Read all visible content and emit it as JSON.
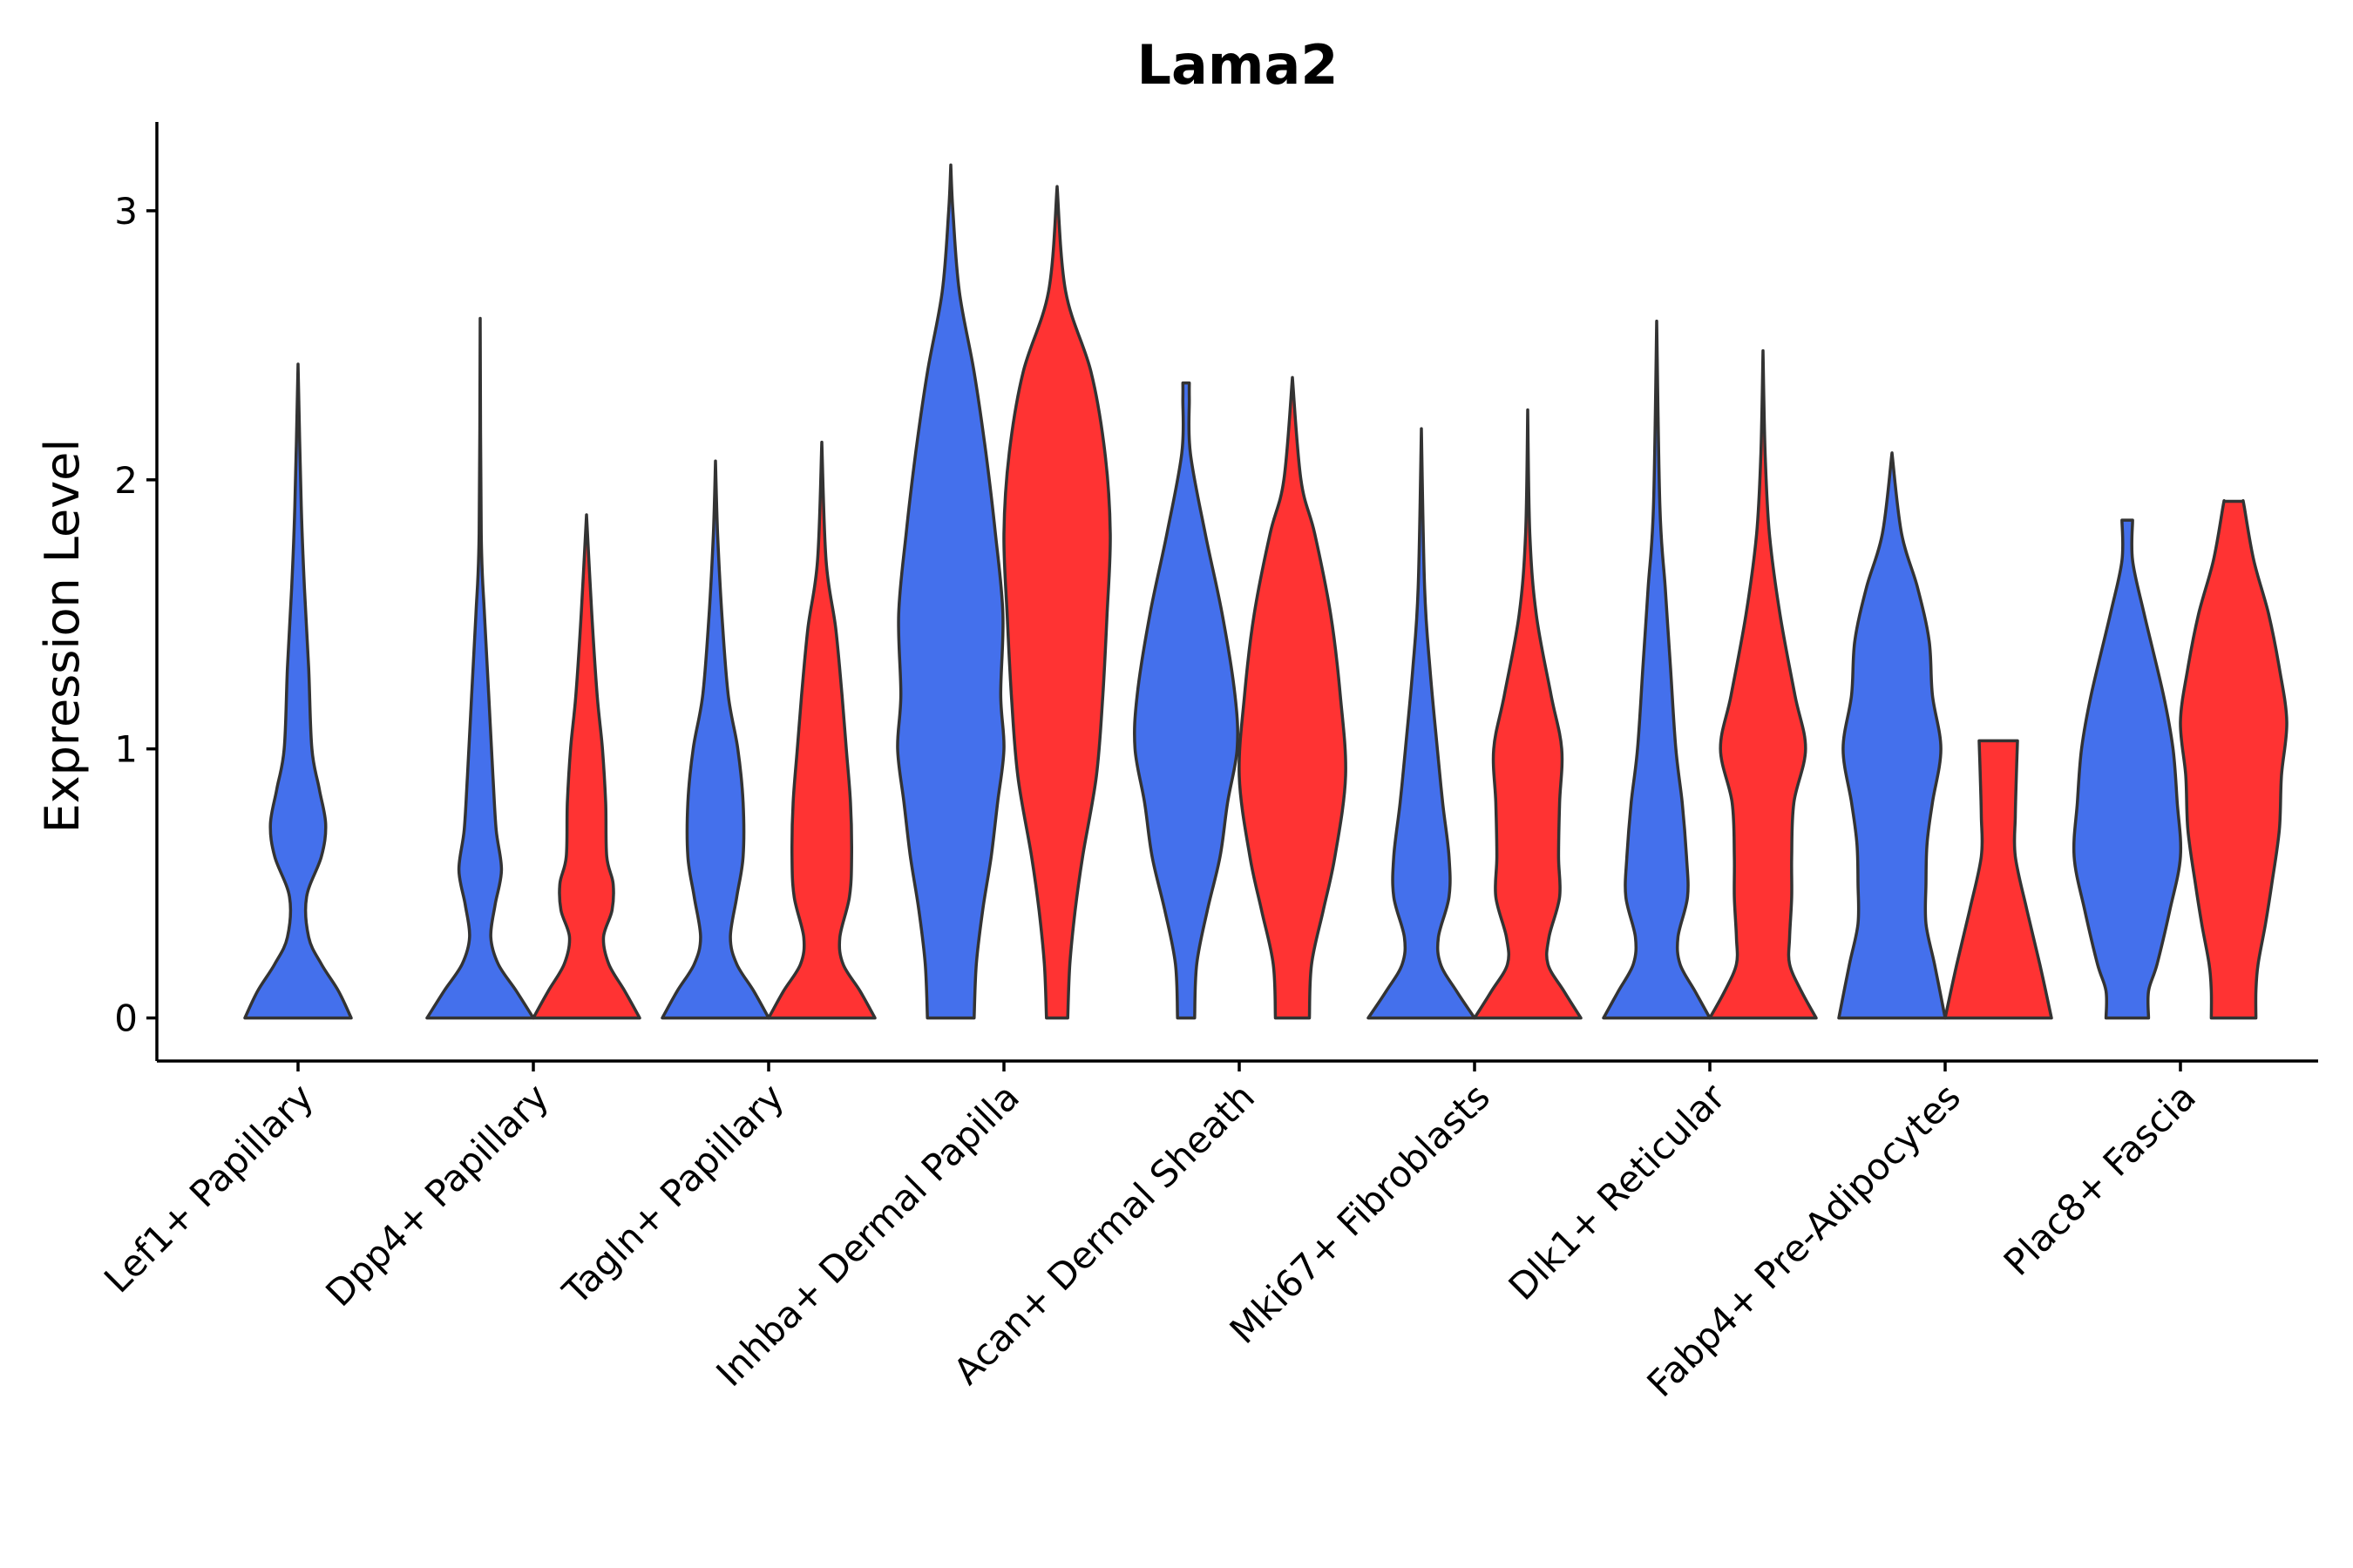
{
  "chart_data": {
    "type": "violin",
    "title": "Lama2",
    "xlabel": "",
    "ylabel": "Expression Level",
    "ylim": [
      -0.16,
      3.33
    ],
    "yticks": [
      0,
      1,
      2,
      3
    ],
    "categories": [
      "Lef1+ Papillary",
      "Dpp4+ Papillary",
      "Tagln+ Papillary",
      "Inhba+ Dermal Papilla",
      "Acan+ Dermal Sheath",
      "Mki67+ Fibroblasts",
      "Dlk1+ Reticular",
      "Fabp4+ Pre-Adipocytes",
      "Plac8+ Fascia"
    ],
    "series_colors": [
      "#4470EC",
      "#FF3333"
    ],
    "violins": [
      {
        "category": "Lef1+ Papillary",
        "group": 0,
        "max": 2.43,
        "profile": [
          [
            0,
            0.5
          ],
          [
            0.1,
            0.38
          ],
          [
            0.2,
            0.22
          ],
          [
            0.3,
            0.1
          ],
          [
            0.45,
            0.08
          ],
          [
            0.6,
            0.22
          ],
          [
            0.72,
            0.26
          ],
          [
            0.85,
            0.2
          ],
          [
            1.0,
            0.13
          ],
          [
            1.3,
            0.1
          ],
          [
            1.6,
            0.06
          ],
          [
            1.9,
            0.03
          ],
          [
            2.43,
            0.0
          ]
        ]
      },
      {
        "category": "Dpp4+ Papillary",
        "group": 0,
        "max": 2.6,
        "profile": [
          [
            0,
            0.5
          ],
          [
            0.1,
            0.34
          ],
          [
            0.2,
            0.17
          ],
          [
            0.3,
            0.1
          ],
          [
            0.42,
            0.14
          ],
          [
            0.55,
            0.2
          ],
          [
            0.7,
            0.15
          ],
          [
            0.9,
            0.12
          ],
          [
            1.2,
            0.08
          ],
          [
            1.5,
            0.04
          ],
          [
            1.8,
            0.01
          ],
          [
            2.6,
            0.0
          ]
        ]
      },
      {
        "category": "Dpp4+ Papillary",
        "group": 1,
        "max": 1.87,
        "profile": [
          [
            0,
            0.5
          ],
          [
            0.1,
            0.36
          ],
          [
            0.2,
            0.21
          ],
          [
            0.3,
            0.16
          ],
          [
            0.4,
            0.24
          ],
          [
            0.5,
            0.25
          ],
          [
            0.6,
            0.19
          ],
          [
            0.8,
            0.18
          ],
          [
            1.0,
            0.15
          ],
          [
            1.2,
            0.1
          ],
          [
            1.5,
            0.05
          ],
          [
            1.87,
            0.0
          ]
        ]
      },
      {
        "category": "Tagln+ Papillary",
        "group": 0,
        "max": 2.07,
        "profile": [
          [
            0,
            0.5
          ],
          [
            0.1,
            0.36
          ],
          [
            0.2,
            0.2
          ],
          [
            0.3,
            0.14
          ],
          [
            0.45,
            0.2
          ],
          [
            0.6,
            0.26
          ],
          [
            0.8,
            0.26
          ],
          [
            1.0,
            0.21
          ],
          [
            1.2,
            0.12
          ],
          [
            1.5,
            0.06
          ],
          [
            1.8,
            0.02
          ],
          [
            2.07,
            0.0
          ]
        ]
      },
      {
        "category": "Tagln+ Papillary",
        "group": 1,
        "max": 2.14,
        "profile": [
          [
            0,
            0.5
          ],
          [
            0.1,
            0.36
          ],
          [
            0.2,
            0.2
          ],
          [
            0.3,
            0.17
          ],
          [
            0.45,
            0.26
          ],
          [
            0.6,
            0.28
          ],
          [
            0.8,
            0.27
          ],
          [
            1.0,
            0.23
          ],
          [
            1.2,
            0.19
          ],
          [
            1.45,
            0.13
          ],
          [
            1.7,
            0.04
          ],
          [
            2.14,
            0.0
          ]
        ]
      },
      {
        "category": "Inhba+ Dermal Papilla",
        "group": 0,
        "max": 3.17,
        "profile": [
          [
            0,
            0.22
          ],
          [
            0.2,
            0.24
          ],
          [
            0.4,
            0.3
          ],
          [
            0.6,
            0.38
          ],
          [
            0.8,
            0.44
          ],
          [
            1.0,
            0.5
          ],
          [
            1.2,
            0.47
          ],
          [
            1.5,
            0.49
          ],
          [
            1.8,
            0.42
          ],
          [
            2.1,
            0.33
          ],
          [
            2.4,
            0.22
          ],
          [
            2.7,
            0.08
          ],
          [
            3.0,
            0.02
          ],
          [
            3.17,
            0.0
          ]
        ]
      },
      {
        "category": "Inhba+ Dermal Papilla",
        "group": 1,
        "max": 3.09,
        "profile": [
          [
            0,
            0.1
          ],
          [
            0.2,
            0.12
          ],
          [
            0.4,
            0.17
          ],
          [
            0.6,
            0.24
          ],
          [
            0.9,
            0.37
          ],
          [
            1.2,
            0.43
          ],
          [
            1.5,
            0.47
          ],
          [
            1.8,
            0.5
          ],
          [
            2.1,
            0.45
          ],
          [
            2.4,
            0.32
          ],
          [
            2.7,
            0.08
          ],
          [
            3.09,
            0.0
          ]
        ]
      },
      {
        "category": "Acan+ Dermal Sheath",
        "group": 0,
        "max": 2.36,
        "profile": [
          [
            0,
            0.08
          ],
          [
            0.2,
            0.1
          ],
          [
            0.4,
            0.2
          ],
          [
            0.6,
            0.32
          ],
          [
            0.8,
            0.39
          ],
          [
            1.0,
            0.48
          ],
          [
            1.2,
            0.46
          ],
          [
            1.5,
            0.34
          ],
          [
            1.8,
            0.18
          ],
          [
            2.1,
            0.04
          ],
          [
            2.3,
            0.03
          ],
          [
            2.36,
            0.03
          ]
        ]
      },
      {
        "category": "Acan+ Dermal Sheath",
        "group": 1,
        "max": 2.38,
        "profile": [
          [
            0,
            0.16
          ],
          [
            0.2,
            0.18
          ],
          [
            0.4,
            0.29
          ],
          [
            0.6,
            0.4
          ],
          [
            0.9,
            0.5
          ],
          [
            1.2,
            0.45
          ],
          [
            1.5,
            0.36
          ],
          [
            1.8,
            0.21
          ],
          [
            2.0,
            0.08
          ],
          [
            2.38,
            0.0
          ]
        ]
      },
      {
        "category": "Mki67+ Fibroblasts",
        "group": 0,
        "max": 2.19,
        "profile": [
          [
            0,
            0.5
          ],
          [
            0.1,
            0.33
          ],
          [
            0.2,
            0.18
          ],
          [
            0.3,
            0.16
          ],
          [
            0.45,
            0.26
          ],
          [
            0.6,
            0.26
          ],
          [
            0.8,
            0.2
          ],
          [
            1.0,
            0.15
          ],
          [
            1.3,
            0.08
          ],
          [
            1.6,
            0.03
          ],
          [
            2.19,
            0.0
          ]
        ]
      },
      {
        "category": "Mki67+ Fibroblasts",
        "group": 1,
        "max": 2.26,
        "profile": [
          [
            0,
            0.5
          ],
          [
            0.1,
            0.34
          ],
          [
            0.2,
            0.19
          ],
          [
            0.3,
            0.2
          ],
          [
            0.45,
            0.3
          ],
          [
            0.6,
            0.29
          ],
          [
            0.8,
            0.3
          ],
          [
            1.0,
            0.32
          ],
          [
            1.2,
            0.22
          ],
          [
            1.5,
            0.08
          ],
          [
            1.8,
            0.02
          ],
          [
            2.26,
            0.0
          ]
        ]
      },
      {
        "category": "Dlk1+ Reticular",
        "group": 0,
        "max": 2.59,
        "profile": [
          [
            0,
            0.5
          ],
          [
            0.1,
            0.36
          ],
          [
            0.2,
            0.22
          ],
          [
            0.3,
            0.2
          ],
          [
            0.45,
            0.29
          ],
          [
            0.6,
            0.28
          ],
          [
            0.8,
            0.24
          ],
          [
            1.0,
            0.18
          ],
          [
            1.3,
            0.13
          ],
          [
            1.6,
            0.08
          ],
          [
            1.9,
            0.03
          ],
          [
            2.59,
            0.0
          ]
        ]
      },
      {
        "category": "Dlk1+ Reticular",
        "group": 1,
        "max": 2.48,
        "profile": [
          [
            0,
            0.5
          ],
          [
            0.1,
            0.36
          ],
          [
            0.2,
            0.25
          ],
          [
            0.3,
            0.25
          ],
          [
            0.45,
            0.27
          ],
          [
            0.6,
            0.27
          ],
          [
            0.8,
            0.29
          ],
          [
            1.0,
            0.4
          ],
          [
            1.2,
            0.3
          ],
          [
            1.5,
            0.16
          ],
          [
            1.8,
            0.06
          ],
          [
            2.1,
            0.02
          ],
          [
            2.48,
            0.0
          ]
        ]
      },
      {
        "category": "Fabp4+ Pre-Adipocytes",
        "group": 0,
        "max": 2.1,
        "profile": [
          [
            0,
            0.5
          ],
          [
            0.2,
            0.4
          ],
          [
            0.35,
            0.32
          ],
          [
            0.5,
            0.32
          ],
          [
            0.65,
            0.33
          ],
          [
            0.8,
            0.38
          ],
          [
            1.0,
            0.46
          ],
          [
            1.2,
            0.38
          ],
          [
            1.4,
            0.35
          ],
          [
            1.6,
            0.24
          ],
          [
            1.8,
            0.09
          ],
          [
            2.1,
            0.0
          ]
        ]
      },
      {
        "category": "Fabp4+ Pre-Adipocytes",
        "group": 1,
        "max": 1.03,
        "profile": [
          [
            0,
            0.5
          ],
          [
            0.2,
            0.39
          ],
          [
            0.4,
            0.27
          ],
          [
            0.6,
            0.16
          ],
          [
            0.75,
            0.16
          ],
          [
            0.9,
            0.17
          ],
          [
            1.03,
            0.18
          ]
        ]
      },
      {
        "category": "Plac8+ Fascia",
        "group": 0,
        "max": 1.85,
        "profile": [
          [
            0,
            0.2
          ],
          [
            0.1,
            0.2
          ],
          [
            0.2,
            0.28
          ],
          [
            0.4,
            0.4
          ],
          [
            0.6,
            0.5
          ],
          [
            0.8,
            0.47
          ],
          [
            1.0,
            0.43
          ],
          [
            1.2,
            0.34
          ],
          [
            1.5,
            0.16
          ],
          [
            1.7,
            0.05
          ],
          [
            1.85,
            0.05
          ]
        ]
      },
      {
        "category": "Plac8+ Fascia",
        "group": 1,
        "max": 1.92,
        "profile": [
          [
            0,
            0.21
          ],
          [
            0.1,
            0.21
          ],
          [
            0.2,
            0.23
          ],
          [
            0.35,
            0.3
          ],
          [
            0.5,
            0.36
          ],
          [
            0.7,
            0.43
          ],
          [
            0.9,
            0.45
          ],
          [
            1.1,
            0.5
          ],
          [
            1.3,
            0.43
          ],
          [
            1.5,
            0.33
          ],
          [
            1.7,
            0.19
          ],
          [
            1.9,
            0.1
          ],
          [
            1.92,
            0.09
          ]
        ]
      }
    ]
  }
}
